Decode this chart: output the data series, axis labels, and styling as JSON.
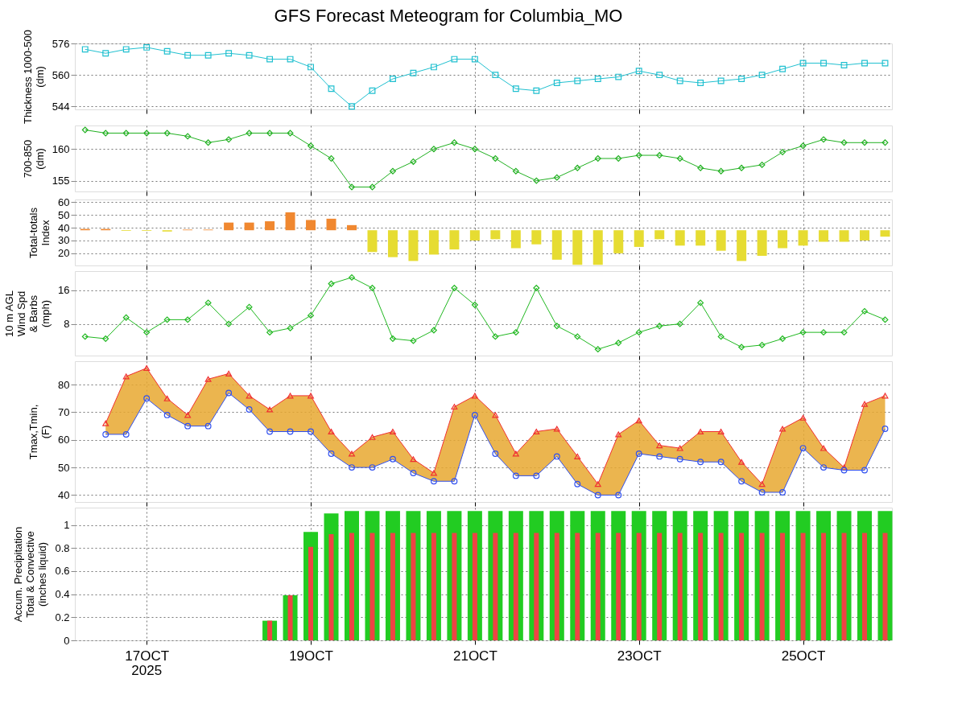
{
  "chart_data": [
    {
      "type": "line",
      "title": "GFS Forecast Meteogram for Columbia_MO",
      "ylabel": "Thickness 1000-500\n(dm)",
      "marker": "square",
      "grid": true,
      "tick_labels": "y",
      "xlim": [
        "2025-10-16T03:00",
        "2025-10-26T02:00"
      ],
      "xticks": [
        {
          "value": "2025-10-17T00:00",
          "label": null
        },
        {
          "value": "2025-10-19T00:00",
          "label": null
        },
        {
          "value": "2025-10-21T00:00",
          "label": null
        },
        {
          "value": "2025-10-23T00:00",
          "label": null
        },
        {
          "value": "2025-10-25T00:00",
          "label": null
        }
      ],
      "ylim": [
        542.5,
        576
      ],
      "yticks": [
        544,
        560,
        576
      ],
      "x": [
        "2025-10-16T06:00",
        "2025-10-16T12:00",
        "2025-10-16T18:00",
        "2025-10-17T00:00",
        "2025-10-17T06:00",
        "2025-10-17T12:00",
        "2025-10-17T18:00",
        "2025-10-18T00:00",
        "2025-10-18T06:00",
        "2025-10-18T12:00",
        "2025-10-18T18:00",
        "2025-10-19T00:00",
        "2025-10-19T06:00",
        "2025-10-19T12:00",
        "2025-10-19T18:00",
        "2025-10-20T00:00",
        "2025-10-20T06:00",
        "2025-10-20T12:00",
        "2025-10-20T18:00",
        "2025-10-21T00:00",
        "2025-10-21T06:00",
        "2025-10-21T12:00",
        "2025-10-21T18:00",
        "2025-10-22T00:00",
        "2025-10-22T06:00",
        "2025-10-22T12:00",
        "2025-10-22T18:00",
        "2025-10-23T00:00",
        "2025-10-23T06:00",
        "2025-10-23T12:00",
        "2025-10-23T18:00",
        "2025-10-24T00:00",
        "2025-10-24T06:00",
        "2025-10-24T12:00",
        "2025-10-24T18:00",
        "2025-10-25T00:00",
        "2025-10-25T06:00",
        "2025-10-25T12:00",
        "2025-10-25T18:00",
        "2025-10-26T00:00"
      ],
      "series": [
        {
          "color": "#20c0d0",
          "values": [
            573,
            571,
            573,
            574,
            572,
            570,
            570,
            571,
            570,
            568,
            568,
            564,
            553,
            544,
            552,
            558,
            561,
            564,
            568,
            568,
            560,
            553,
            552,
            556,
            557,
            558,
            559,
            562,
            560,
            557,
            556,
            557,
            558,
            560,
            563,
            566,
            566,
            565,
            566,
            566
          ]
        }
      ]
    },
    {
      "type": "line",
      "ylabel": "700-850\n(dm)",
      "marker": "diamond",
      "grid": true,
      "tick_labels": "y",
      "xlim": [
        "2025-10-16T03:00",
        "2025-10-26T02:00"
      ],
      "xticks": [
        {
          "value": "2025-10-17T00:00",
          "label": null
        },
        {
          "value": "2025-10-19T00:00",
          "label": null
        },
        {
          "value": "2025-10-21T00:00",
          "label": null
        },
        {
          "value": "2025-10-23T00:00",
          "label": null
        },
        {
          "value": "2025-10-25T00:00",
          "label": null
        }
      ],
      "ylim": [
        153.3,
        163.7
      ],
      "yticks": [
        155,
        160
      ],
      "x": [
        "2025-10-16T06:00",
        "2025-10-16T12:00",
        "2025-10-16T18:00",
        "2025-10-17T00:00",
        "2025-10-17T06:00",
        "2025-10-17T12:00",
        "2025-10-17T18:00",
        "2025-10-18T00:00",
        "2025-10-18T06:00",
        "2025-10-18T12:00",
        "2025-10-18T18:00",
        "2025-10-19T00:00",
        "2025-10-19T06:00",
        "2025-10-19T12:00",
        "2025-10-19T18:00",
        "2025-10-20T00:00",
        "2025-10-20T06:00",
        "2025-10-20T12:00",
        "2025-10-20T18:00",
        "2025-10-21T00:00",
        "2025-10-21T06:00",
        "2025-10-21T12:00",
        "2025-10-21T18:00",
        "2025-10-22T00:00",
        "2025-10-22T06:00",
        "2025-10-22T12:00",
        "2025-10-22T18:00",
        "2025-10-23T00:00",
        "2025-10-23T06:00",
        "2025-10-23T12:00",
        "2025-10-23T18:00",
        "2025-10-24T00:00",
        "2025-10-24T06:00",
        "2025-10-24T12:00",
        "2025-10-24T18:00",
        "2025-10-25T00:00",
        "2025-10-25T06:00",
        "2025-10-25T12:00",
        "2025-10-25T18:00",
        "2025-10-26T00:00"
      ],
      "series": [
        {
          "color": "#20b020",
          "values": [
            163,
            162.5,
            162.5,
            162.5,
            162.5,
            162,
            161,
            161.5,
            162.5,
            162.5,
            162.5,
            160.5,
            158.5,
            154,
            154,
            156.5,
            158,
            160,
            161,
            160,
            158.5,
            156.5,
            155,
            155.5,
            157,
            158.5,
            158.5,
            159,
            159,
            158.5,
            157,
            156.5,
            157,
            157.5,
            159.5,
            160.5,
            161.5,
            161,
            161,
            161
          ]
        }
      ]
    },
    {
      "type": "bar",
      "ylabel": "Total-totals\nIndex",
      "grid": true,
      "tick_labels": "y",
      "xlim": [
        "2025-10-16T03:00",
        "2025-10-26T02:00"
      ],
      "xticks": [
        {
          "value": "2025-10-17T00:00",
          "label": null
        },
        {
          "value": "2025-10-19T00:00",
          "label": null
        },
        {
          "value": "2025-10-21T00:00",
          "label": null
        },
        {
          "value": "2025-10-23T00:00",
          "label": null
        },
        {
          "value": "2025-10-25T00:00",
          "label": null
        }
      ],
      "ylim": [
        10.5,
        62
      ],
      "yticks": [
        20,
        30,
        40,
        50,
        60
      ],
      "x": [
        "2025-10-16T06:00",
        "2025-10-16T12:00",
        "2025-10-16T18:00",
        "2025-10-17T00:00",
        "2025-10-17T06:00",
        "2025-10-17T12:00",
        "2025-10-17T18:00",
        "2025-10-18T00:00",
        "2025-10-18T06:00",
        "2025-10-18T12:00",
        "2025-10-18T18:00",
        "2025-10-19T00:00",
        "2025-10-19T06:00",
        "2025-10-19T12:00",
        "2025-10-19T18:00",
        "2025-10-20T00:00",
        "2025-10-20T06:00",
        "2025-10-20T12:00",
        "2025-10-20T18:00",
        "2025-10-21T00:00",
        "2025-10-21T06:00",
        "2025-10-21T12:00",
        "2025-10-21T18:00",
        "2025-10-22T00:00",
        "2025-10-22T06:00",
        "2025-10-22T12:00",
        "2025-10-22T18:00",
        "2025-10-23T00:00",
        "2025-10-23T06:00",
        "2025-10-23T12:00",
        "2025-10-23T18:00",
        "2025-10-24T00:00",
        "2025-10-24T06:00",
        "2025-10-24T12:00",
        "2025-10-24T18:00",
        "2025-10-25T00:00",
        "2025-10-25T06:00",
        "2025-10-25T12:00",
        "2025-10-25T18:00",
        "2025-10-26T00:00"
      ],
      "base": [
        38,
        38,
        38,
        38,
        38,
        38,
        38,
        38,
        38,
        38,
        38,
        38,
        38,
        38,
        38,
        38,
        38,
        38,
        38,
        38,
        38,
        38,
        38,
        38,
        38,
        38,
        38,
        38,
        38,
        38,
        38,
        38,
        38,
        38,
        38,
        38,
        38,
        38,
        38,
        38
      ],
      "values": [
        1,
        1,
        -0.5,
        -0.5,
        -1,
        0.5,
        0.5,
        6,
        6,
        7,
        14,
        8,
        9,
        4,
        -17,
        -21,
        -24,
        -19,
        -15,
        -8,
        -7,
        -14,
        -11,
        -23,
        -27,
        -27,
        -18,
        -13,
        -7,
        -12,
        -12,
        -16,
        -24,
        -20,
        -14,
        -12,
        -9,
        -9,
        -8,
        -5
      ],
      "colors": [
        "#f08830",
        "#f08830",
        "#e6dc32",
        "#e6dc32",
        "#e6dc32",
        "#f08830",
        "#f08830",
        "#f08830",
        "#f08830",
        "#f08830",
        "#f08830",
        "#f08830",
        "#f08830",
        "#f08830",
        "#e6dc32",
        "#e6dc32",
        "#e6dc32",
        "#e6dc32",
        "#e6dc32",
        "#e6dc32",
        "#e6dc32",
        "#e6dc32",
        "#e6dc32",
        "#e6dc32",
        "#e6dc32",
        "#e6dc32",
        "#e6dc32",
        "#e6dc32",
        "#e6dc32",
        "#e6dc32",
        "#e6dc32",
        "#e6dc32",
        "#e6dc32",
        "#e6dc32",
        "#e6dc32",
        "#e6dc32",
        "#e6dc32",
        "#e6dc32",
        "#e6dc32",
        "#e6dc32"
      ]
    },
    {
      "type": "line",
      "ylabel": "10 m AGL\nWind Spd\n& Barbs\n(mph)",
      "marker": "diamond",
      "grid": true,
      "tick_labels": "y",
      "xlim": [
        "2025-10-16T03:00",
        "2025-10-26T02:00"
      ],
      "xticks": [
        {
          "value": "2025-10-17T00:00",
          "label": null
        },
        {
          "value": "2025-10-19T00:00",
          "label": null
        },
        {
          "value": "2025-10-21T00:00",
          "label": null
        },
        {
          "value": "2025-10-23T00:00",
          "label": null
        },
        {
          "value": "2025-10-25T00:00",
          "label": null
        }
      ],
      "ylim": [
        0.5,
        20.5
      ],
      "yticks": [
        8,
        16
      ],
      "x": [
        "2025-10-16T06:00",
        "2025-10-16T12:00",
        "2025-10-16T18:00",
        "2025-10-17T00:00",
        "2025-10-17T06:00",
        "2025-10-17T12:00",
        "2025-10-17T18:00",
        "2025-10-18T00:00",
        "2025-10-18T06:00",
        "2025-10-18T12:00",
        "2025-10-18T18:00",
        "2025-10-19T00:00",
        "2025-10-19T06:00",
        "2025-10-19T12:00",
        "2025-10-19T18:00",
        "2025-10-20T00:00",
        "2025-10-20T06:00",
        "2025-10-20T12:00",
        "2025-10-20T18:00",
        "2025-10-21T00:00",
        "2025-10-21T06:00",
        "2025-10-21T12:00",
        "2025-10-21T18:00",
        "2025-10-22T00:00",
        "2025-10-22T06:00",
        "2025-10-22T12:00",
        "2025-10-22T18:00",
        "2025-10-23T00:00",
        "2025-10-23T06:00",
        "2025-10-23T12:00",
        "2025-10-23T18:00",
        "2025-10-24T00:00",
        "2025-10-24T06:00",
        "2025-10-24T12:00",
        "2025-10-24T18:00",
        "2025-10-25T00:00",
        "2025-10-25T06:00",
        "2025-10-25T12:00",
        "2025-10-25T18:00",
        "2025-10-26T00:00"
      ],
      "series": [
        {
          "color": "#20b820",
          "values": [
            5,
            4.5,
            9.5,
            6,
            9,
            9,
            13,
            8,
            12,
            6,
            7,
            10,
            17.5,
            19,
            16.5,
            4.5,
            4,
            6.5,
            16.5,
            12.5,
            5,
            6,
            16.5,
            7.5,
            5,
            2,
            3.5,
            6,
            7.5,
            8,
            13,
            5,
            2.5,
            3,
            4.5,
            6,
            6,
            6,
            11,
            9
          ]
        }
      ]
    },
    {
      "type": "line",
      "ylabel": "Tmax,Tmin,\n(F)",
      "grid": true,
      "tick_labels": "y",
      "xlim": [
        "2025-10-16T03:00",
        "2025-10-26T02:00"
      ],
      "xticks": [
        {
          "value": "2025-10-17T00:00",
          "label": null
        },
        {
          "value": "2025-10-19T00:00",
          "label": null
        },
        {
          "value": "2025-10-21T00:00",
          "label": null
        },
        {
          "value": "2025-10-23T00:00",
          "label": null
        },
        {
          "value": "2025-10-25T00:00",
          "label": null
        }
      ],
      "ylim": [
        37.5,
        88.5
      ],
      "yticks": [
        40,
        50,
        60,
        70,
        80
      ],
      "x": [
        "2025-10-16T12:00",
        "2025-10-16T18:00",
        "2025-10-17T00:00",
        "2025-10-17T06:00",
        "2025-10-17T12:00",
        "2025-10-17T18:00",
        "2025-10-18T00:00",
        "2025-10-18T06:00",
        "2025-10-18T12:00",
        "2025-10-18T18:00",
        "2025-10-19T00:00",
        "2025-10-19T06:00",
        "2025-10-19T12:00",
        "2025-10-19T18:00",
        "2025-10-20T00:00",
        "2025-10-20T06:00",
        "2025-10-20T12:00",
        "2025-10-20T18:00",
        "2025-10-21T00:00",
        "2025-10-21T06:00",
        "2025-10-21T12:00",
        "2025-10-21T18:00",
        "2025-10-22T00:00",
        "2025-10-22T06:00",
        "2025-10-22T12:00",
        "2025-10-22T18:00",
        "2025-10-23T00:00",
        "2025-10-23T06:00",
        "2025-10-23T12:00",
        "2025-10-23T18:00",
        "2025-10-24T00:00",
        "2025-10-24T06:00",
        "2025-10-24T12:00",
        "2025-10-24T18:00",
        "2025-10-25T00:00",
        "2025-10-25T06:00",
        "2025-10-25T12:00",
        "2025-10-25T18:00",
        "2025-10-26T00:00"
      ],
      "series": [
        {
          "color": "#f03030",
          "marker": "triangle",
          "values": [
            66,
            83,
            86,
            75,
            69,
            82,
            84,
            76,
            71,
            76,
            76,
            63,
            55,
            61,
            63,
            53,
            48,
            72,
            76,
            69,
            55,
            63,
            64,
            54,
            44,
            62,
            67,
            58,
            57,
            63,
            63,
            52,
            44,
            64,
            68,
            57,
            50,
            73,
            76
          ],
          "lower": [
            62,
            62,
            75,
            69,
            65,
            65,
            77,
            71,
            63,
            63,
            63,
            55,
            50,
            50,
            53,
            48,
            45,
            45,
            69,
            55,
            47,
            47,
            54,
            44,
            40,
            40,
            55,
            54,
            53,
            52,
            52,
            45,
            41,
            41,
            57,
            50,
            49,
            49,
            64
          ],
          "upper": [
            66,
            83,
            86,
            75,
            69,
            82,
            84,
            76,
            71,
            76,
            76,
            63,
            55,
            61,
            63,
            53,
            48,
            72,
            76,
            69,
            55,
            63,
            64,
            54,
            44,
            62,
            67,
            58,
            57,
            63,
            63,
            52,
            44,
            64,
            68,
            57,
            50,
            73,
            76
          ]
        },
        {
          "color": "#3050f0",
          "marker": "circle",
          "values": [
            62,
            62,
            75,
            69,
            65,
            65,
            77,
            71,
            63,
            63,
            63,
            55,
            50,
            50,
            53,
            48,
            45,
            45,
            69,
            55,
            47,
            47,
            54,
            44,
            40,
            40,
            55,
            54,
            53,
            52,
            52,
            45,
            41,
            41,
            57,
            50,
            49,
            49,
            64
          ]
        }
      ]
    },
    {
      "type": "bar",
      "ylabel": "Accum. Precipitation\nTotal & Convective\n(inches liquid)",
      "grid": true,
      "annotations": [
        "2025"
      ],
      "xlim": [
        "2025-10-16T03:00",
        "2025-10-26T02:00"
      ],
      "xticks": [
        {
          "value": "2025-10-17T00:00",
          "label": "17OCT"
        },
        {
          "value": "2025-10-19T00:00",
          "label": "19OCT"
        },
        {
          "value": "2025-10-21T00:00",
          "label": "21OCT"
        },
        {
          "value": "2025-10-23T00:00",
          "label": "23OCT"
        },
        {
          "value": "2025-10-25T00:00",
          "label": "25OCT"
        }
      ],
      "ylim": [
        0,
        1.15
      ],
      "yticks": [
        0,
        0.2,
        0.4,
        0.6,
        0.8,
        1
      ],
      "x": [
        "2025-10-16T06:00",
        "2025-10-16T12:00",
        "2025-10-16T18:00",
        "2025-10-17T00:00",
        "2025-10-17T06:00",
        "2025-10-17T12:00",
        "2025-10-17T18:00",
        "2025-10-18T00:00",
        "2025-10-18T06:00",
        "2025-10-18T12:00",
        "2025-10-18T18:00",
        "2025-10-19T00:00",
        "2025-10-19T06:00",
        "2025-10-19T12:00",
        "2025-10-19T18:00",
        "2025-10-20T00:00",
        "2025-10-20T06:00",
        "2025-10-20T12:00",
        "2025-10-20T18:00",
        "2025-10-21T00:00",
        "2025-10-21T06:00",
        "2025-10-21T12:00",
        "2025-10-21T18:00",
        "2025-10-22T00:00",
        "2025-10-22T06:00",
        "2025-10-22T12:00",
        "2025-10-22T18:00",
        "2025-10-23T00:00",
        "2025-10-23T06:00",
        "2025-10-23T12:00",
        "2025-10-23T18:00",
        "2025-10-24T00:00",
        "2025-10-24T06:00",
        "2025-10-24T12:00",
        "2025-10-24T18:00",
        "2025-10-25T00:00",
        "2025-10-25T06:00",
        "2025-10-25T12:00",
        "2025-10-25T18:00",
        "2025-10-26T00:00"
      ],
      "series": [
        {
          "color": "#22cc22",
          "values": [
            0,
            0,
            0,
            0,
            0,
            0,
            0,
            0,
            0,
            0.17,
            0.39,
            0.94,
            1.1,
            1.12,
            1.12,
            1.12,
            1.12,
            1.12,
            1.12,
            1.12,
            1.12,
            1.12,
            1.12,
            1.12,
            1.12,
            1.12,
            1.12,
            1.12,
            1.12,
            1.12,
            1.12,
            1.12,
            1.12,
            1.12,
            1.12,
            1.12,
            1.12,
            1.12,
            1.12,
            1.12
          ]
        },
        {
          "color": "#ee4444",
          "values": [
            0,
            0,
            0,
            0,
            0,
            0,
            0,
            0,
            0,
            0.17,
            0.39,
            0.81,
            0.92,
            0.93,
            0.93,
            0.93,
            0.93,
            0.93,
            0.93,
            0.93,
            0.93,
            0.93,
            0.93,
            0.93,
            0.93,
            0.93,
            0.93,
            0.93,
            0.93,
            0.93,
            0.93,
            0.93,
            0.93,
            0.93,
            0.93,
            0.93,
            0.93,
            0.93,
            0.93,
            0.93
          ]
        }
      ]
    }
  ]
}
